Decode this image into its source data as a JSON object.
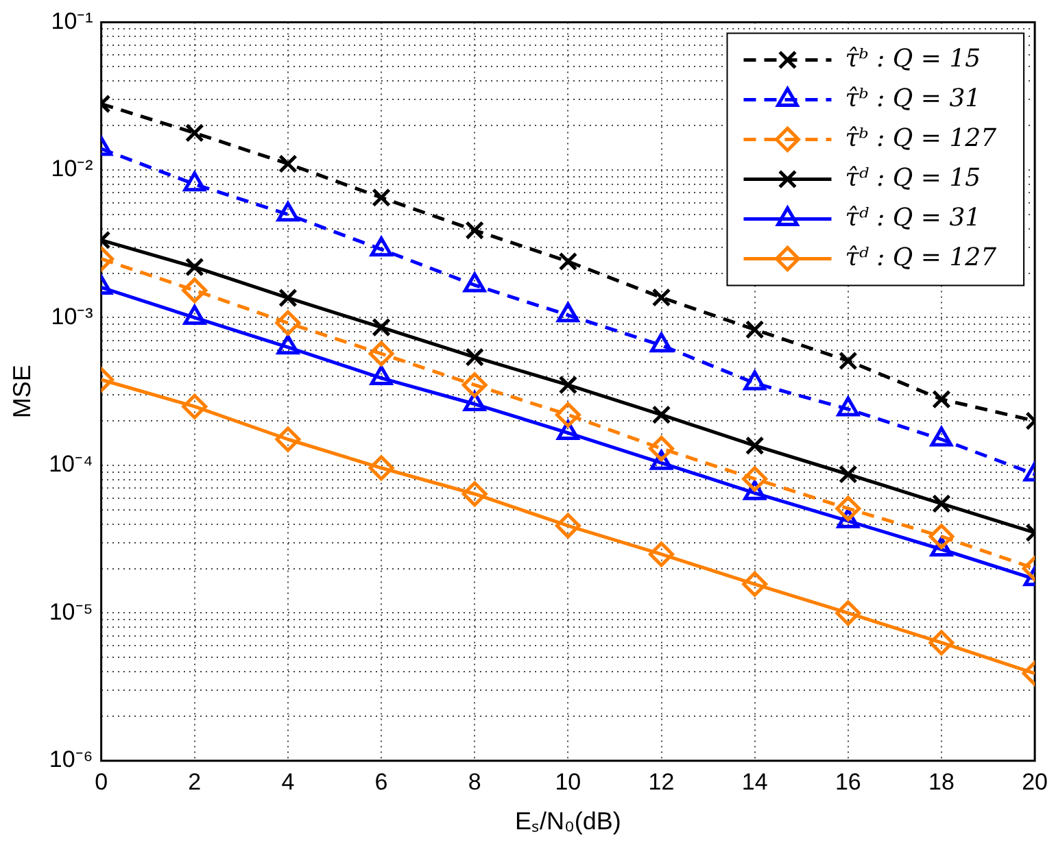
{
  "chart_data": {
    "type": "line",
    "xlabel": "Eₛ/N₀(dB)",
    "ylabel": "MSE",
    "x": [
      0,
      2,
      4,
      6,
      8,
      10,
      12,
      14,
      16,
      18,
      20
    ],
    "series": [
      {
        "name": "τ̂ᵇ : Q = 15",
        "color": "#000000",
        "marker": "cross",
        "line_style": "dashed",
        "values": [
          0.028,
          0.0178,
          0.011,
          0.0065,
          0.0039,
          0.0024,
          0.00137,
          0.00083,
          0.00051,
          0.00028,
          0.0002
        ]
      },
      {
        "name": "τ̂ᵇ : Q = 31",
        "color": "#0000ff",
        "marker": "triangle",
        "line_style": "dashed",
        "values": [
          0.0139,
          0.008,
          0.005,
          0.0029,
          0.00166,
          0.00104,
          0.00065,
          0.00036,
          0.00024,
          0.00015,
          8.7e-05
        ]
      },
      {
        "name": "τ̂ᵇ : Q = 127",
        "color": "#ff8000",
        "marker": "diamond",
        "line_style": "dashed",
        "values": [
          0.0025,
          0.00153,
          0.00092,
          0.00057,
          0.00035,
          0.00022,
          0.00013,
          8.1e-05,
          5.1e-05,
          3.3e-05,
          2e-05
        ]
      },
      {
        "name": "τ̂ᵈ : Q = 15",
        "color": "#000000",
        "marker": "cross",
        "line_style": "solid",
        "values": [
          0.00335,
          0.0022,
          0.00136,
          0.00086,
          0.00054,
          0.00035,
          0.00022,
          0.000136,
          8.7e-05,
          5.5e-05,
          3.5e-05
        ]
      },
      {
        "name": "τ̂ᵈ : Q = 31",
        "color": "#0000ff",
        "marker": "triangle",
        "line_style": "solid",
        "values": [
          0.0016,
          0.001,
          0.00063,
          0.00039,
          0.00026,
          0.000166,
          0.000104,
          6.5e-05,
          4.2e-05,
          2.7e-05,
          1.7e-05
        ]
      },
      {
        "name": "τ̂ᵈ : Q = 127",
        "color": "#ff8000",
        "marker": "diamond",
        "line_style": "solid",
        "values": [
          0.00038,
          0.00025,
          0.00015,
          9.6e-05,
          6.4e-05,
          3.9e-05,
          2.5e-05,
          1.57e-05,
          1e-05,
          6.3e-06,
          3.9e-06
        ]
      }
    ],
    "log": "y",
    "xlim": [
      0,
      20
    ],
    "xticks": [
      0,
      2,
      4,
      6,
      8,
      10,
      12,
      14,
      16,
      18,
      20
    ],
    "ylim": [
      1e-06,
      0.1
    ],
    "yticks": [
      {
        "value": 1e-06,
        "label": "10⁻⁶"
      },
      {
        "value": 2e-06,
        "label": null
      },
      {
        "value": 3e-06,
        "label": null
      },
      {
        "value": 4e-06,
        "label": null
      },
      {
        "value": 5e-06,
        "label": null
      },
      {
        "value": 6e-06,
        "label": null
      },
      {
        "value": 7e-06,
        "label": null
      },
      {
        "value": 8e-06,
        "label": null
      },
      {
        "value": 9e-06,
        "label": null
      },
      {
        "value": 1e-05,
        "label": "10⁻⁵"
      },
      {
        "value": 2e-05,
        "label": null
      },
      {
        "value": 3e-05,
        "label": null
      },
      {
        "value": 4e-05,
        "label": null
      },
      {
        "value": 5e-05,
        "label": null
      },
      {
        "value": 6e-05,
        "label": null
      },
      {
        "value": 7e-05,
        "label": null
      },
      {
        "value": 8e-05,
        "label": null
      },
      {
        "value": 9e-05,
        "label": null
      },
      {
        "value": 0.0001,
        "label": "10⁻⁴"
      },
      {
        "value": 0.0002,
        "label": null
      },
      {
        "value": 0.0003,
        "label": null
      },
      {
        "value": 0.0004,
        "label": null
      },
      {
        "value": 0.0005,
        "label": null
      },
      {
        "value": 0.0006,
        "label": null
      },
      {
        "value": 0.0007,
        "label": null
      },
      {
        "value": 0.0008,
        "label": null
      },
      {
        "value": 0.0009,
        "label": null
      },
      {
        "value": 0.001,
        "label": "10⁻³"
      },
      {
        "value": 0.002,
        "label": null
      },
      {
        "value": 0.003,
        "label": null
      },
      {
        "value": 0.004,
        "label": null
      },
      {
        "value": 0.005,
        "label": null
      },
      {
        "value": 0.006,
        "label": null
      },
      {
        "value": 0.007,
        "label": null
      },
      {
        "value": 0.008,
        "label": null
      },
      {
        "value": 0.009,
        "label": null
      },
      {
        "value": 0.01,
        "label": "10⁻²"
      },
      {
        "value": 0.02,
        "label": null
      },
      {
        "value": 0.03,
        "label": null
      },
      {
        "value": 0.04,
        "label": null
      },
      {
        "value": 0.05,
        "label": null
      },
      {
        "value": 0.06,
        "label": null
      },
      {
        "value": 0.07,
        "label": null
      },
      {
        "value": 0.08,
        "label": null
      },
      {
        "value": 0.09,
        "label": null
      },
      {
        "value": 0.1,
        "label": "10⁻¹"
      }
    ],
    "grid": true,
    "legend": "top right"
  }
}
